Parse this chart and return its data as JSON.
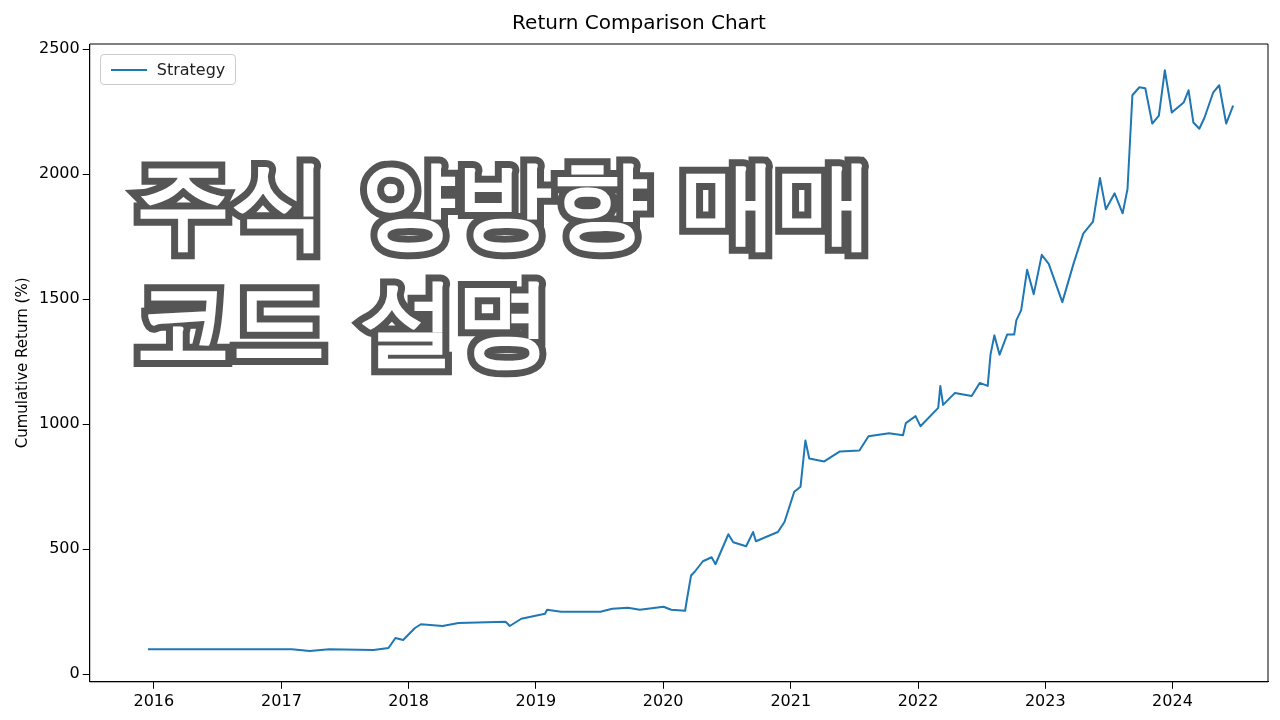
{
  "chart_data": {
    "type": "line",
    "title": "Return Comparison Chart",
    "ylabel": "Cumulative Return (%)",
    "annotations": [
      "주식 양방향 매매 코드 설명"
    ],
    "xlim": [
      "2015-07-01",
      "2024-10-01"
    ],
    "xticks": [
      "2016",
      "2017",
      "2018",
      "2019",
      "2020",
      "2021",
      "2022",
      "2023",
      "2024"
    ],
    "ylim": [
      -30,
      2520
    ],
    "yticks": [
      0,
      500,
      1000,
      1500,
      2000,
      2500
    ],
    "grid": false,
    "legend": "top left",
    "series": [
      {
        "name": "Strategy",
        "color": "#1f77b4",
        "x": [
          "2015-12-15",
          "2017-01-31",
          "2017-03-23",
          "2017-05-18",
          "2017-09-22",
          "2017-11-04",
          "2017-11-24",
          "2017-12-16",
          "2018-01-19",
          "2018-02-05",
          "2018-04-08",
          "2018-05-24",
          "2018-10-06",
          "2018-10-18",
          "2018-11-20",
          "2019-01-27",
          "2019-02-02",
          "2019-03-14",
          "2019-07-05",
          "2019-08-08",
          "2019-09-22",
          "2019-10-26",
          "2020-01-02",
          "2020-01-24",
          "2020-03-04",
          "2020-03-09",
          "2020-03-21",
          "2020-04-01",
          "2020-04-24",
          "2020-05-19",
          "2020-05-30",
          "2020-07-06",
          "2020-07-20",
          "2020-08-26",
          "2020-09-15",
          "2020-09-23",
          "2020-11-25",
          "2020-12-14",
          "2021-01-11",
          "2021-01-29",
          "2021-02-12",
          "2021-02-23",
          "2021-04-07",
          "2021-05-22",
          "2021-07-17",
          "2021-08-12",
          "2021-10-10",
          "2021-11-19",
          "2021-11-27",
          "2021-12-25",
          "2022-01-08",
          "2022-02-28",
          "2022-03-06",
          "2022-03-14",
          "2022-04-17",
          "2022-06-04",
          "2022-06-27",
          "2022-07-20",
          "2022-07-28",
          "2022-08-08",
          "2022-08-23",
          "2022-09-14",
          "2022-10-04",
          "2022-10-10",
          "2022-10-24",
          "2022-11-10",
          "2022-11-29",
          "2022-12-22",
          "2023-01-11",
          "2023-02-19",
          "2023-03-23",
          "2023-04-20",
          "2023-05-18",
          "2023-06-07",
          "2023-06-24",
          "2023-07-19",
          "2023-08-11",
          "2023-08-25",
          "2023-09-08",
          "2023-09-28",
          "2023-10-15",
          "2023-11-04",
          "2023-11-23",
          "2023-12-10",
          "2023-12-30",
          "2024-02-02",
          "2024-02-16",
          "2024-03-01",
          "2024-03-18",
          "2024-04-02",
          "2024-04-27",
          "2024-05-14",
          "2024-06-03",
          "2024-06-23"
        ],
        "values": [
          100,
          100,
          93,
          100,
          97,
          105,
          145,
          137,
          185,
          200,
          193,
          205,
          210,
          193,
          222,
          242,
          258,
          250,
          250,
          262,
          266,
          258,
          270,
          258,
          254,
          298,
          395,
          411,
          452,
          468,
          440,
          560,
          528,
          512,
          569,
          532,
          569,
          609,
          730,
          750,
          935,
          863,
          851,
          891,
          895,
          952,
          964,
          956,
          1004,
          1032,
          992,
          1065,
          1153,
          1077,
          1125,
          1113,
          1165,
          1153,
          1278,
          1355,
          1278,
          1359,
          1359,
          1415,
          1456,
          1617,
          1520,
          1677,
          1641,
          1488,
          1641,
          1762,
          1810,
          1984,
          1859,
          1923,
          1843,
          1940,
          2315,
          2347,
          2343,
          2202,
          2234,
          2415,
          2246,
          2286,
          2335,
          2206,
          2181,
          2226,
          2327,
          2355,
          2202,
          2274
        ]
      }
    ]
  }
}
